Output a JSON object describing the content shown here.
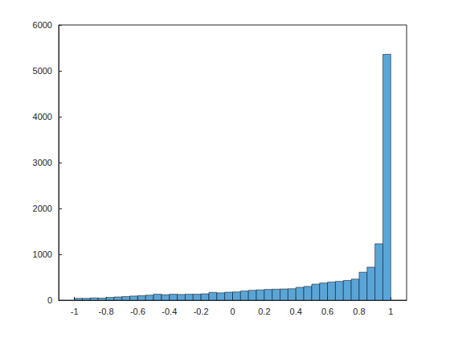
{
  "chart_data": {
    "type": "histogram",
    "bins": [
      -1,
      -0.95,
      -0.9,
      -0.85,
      -0.8,
      -0.75,
      -0.7,
      -0.65,
      -0.6,
      -0.55,
      -0.5,
      -0.45,
      -0.4,
      -0.35,
      -0.3,
      -0.25,
      -0.2,
      -0.15,
      -0.1,
      -0.05,
      0,
      0.05,
      0.1,
      0.15,
      0.2,
      0.25,
      0.3,
      0.35,
      0.4,
      0.45,
      0.5,
      0.55,
      0.6,
      0.65,
      0.7,
      0.75,
      0.8,
      0.85,
      0.9,
      0.95,
      1
    ],
    "values": [
      40,
      40,
      50,
      45,
      60,
      70,
      80,
      90,
      100,
      110,
      130,
      120,
      130,
      125,
      130,
      130,
      140,
      170,
      160,
      175,
      180,
      200,
      215,
      225,
      235,
      240,
      245,
      250,
      280,
      300,
      350,
      375,
      395,
      410,
      430,
      460,
      610,
      720,
      1230,
      5360
    ],
    "color": "#5aa5d8",
    "xlim": [
      -1.1,
      1.1
    ],
    "xticks": [
      -1,
      -0.8,
      -0.6,
      -0.4,
      -0.2,
      0,
      0.2,
      0.4,
      0.6,
      0.8,
      1
    ],
    "ylim": [
      0,
      6000
    ],
    "yticks": [
      0,
      1000,
      2000,
      3000,
      4000,
      5000,
      6000
    ],
    "grid": false
  }
}
